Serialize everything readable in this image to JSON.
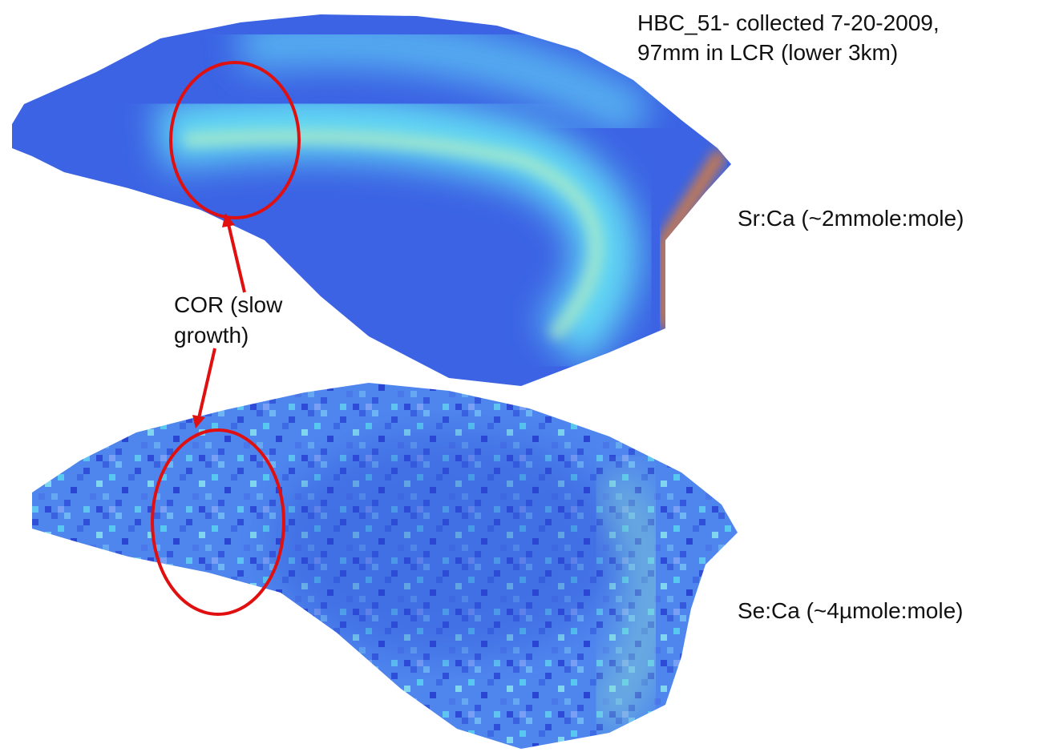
{
  "header": {
    "title_lines": [
      "HBC_51- collected 7-20-2009,",
      "97mm in LCR (lower 3km)"
    ]
  },
  "panels": [
    {
      "label": "Sr:Ca (~2mmole:mole)"
    },
    {
      "label": "Se:Ca (~4µmole:mole)"
    }
  ],
  "annotation": {
    "lines": [
      "COR (slow",
      "growth)"
    ]
  }
}
